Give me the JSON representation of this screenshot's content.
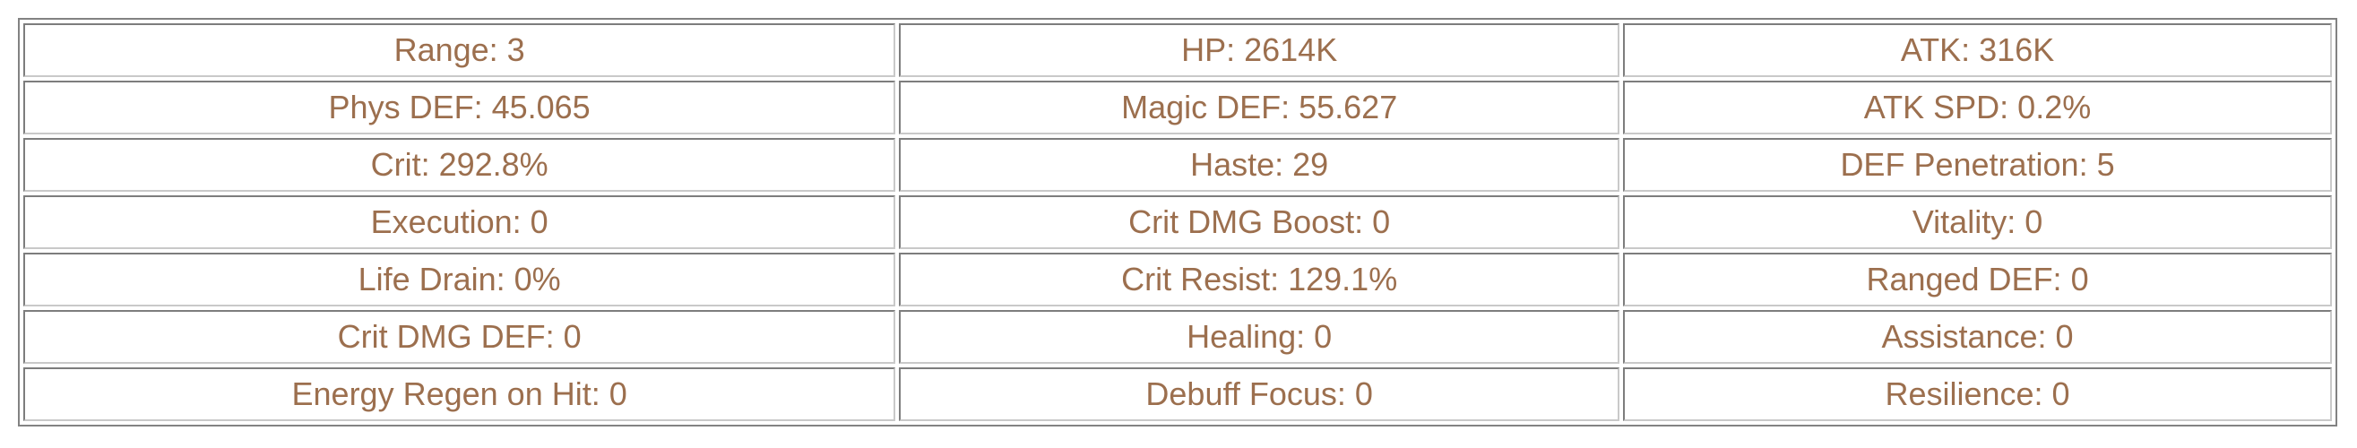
{
  "page": {
    "background_color": "#ffffff"
  },
  "colors": {
    "stat_text": "#9c6f4e",
    "outer_border": "#828282",
    "cell_border_dark": "#7d7d7d",
    "cell_border_light": "#c9c9c9"
  },
  "stats_table": {
    "rows": [
      [
        "Range: 3",
        "HP: 2614K",
        "ATK: 316K"
      ],
      [
        "Phys DEF: 45.065",
        "Magic DEF: 55.627",
        "ATK SPD: 0.2%"
      ],
      [
        "Crit: 292.8%",
        "Haste: 29",
        "DEF Penetration: 5"
      ],
      [
        "Execution: 0",
        "Crit DMG Boost: 0",
        "Vitality: 0"
      ],
      [
        "Life Drain: 0%",
        "Crit Resist: 129.1%",
        "Ranged DEF: 0"
      ],
      [
        "Crit DMG DEF: 0",
        "Healing: 0",
        "Assistance: 0"
      ],
      [
        "Energy Regen on Hit: 0",
        "Debuff Focus: 0",
        "Resilience: 0"
      ]
    ],
    "stats": {
      "range": "3",
      "hp": "2614K",
      "atk": "316K",
      "phys_def": "45.065",
      "magic_def": "55.627",
      "atk_spd": "0.2%",
      "crit": "292.8%",
      "haste": "29",
      "def_penetration": "5",
      "execution": "0",
      "crit_dmg_boost": "0",
      "vitality": "0",
      "life_drain": "0%",
      "crit_resist": "129.1%",
      "ranged_def": "0",
      "crit_dmg_def": "0",
      "healing": "0",
      "assistance": "0",
      "energy_regen_on_hit": "0",
      "debuff_focus": "0",
      "resilience": "0"
    }
  }
}
